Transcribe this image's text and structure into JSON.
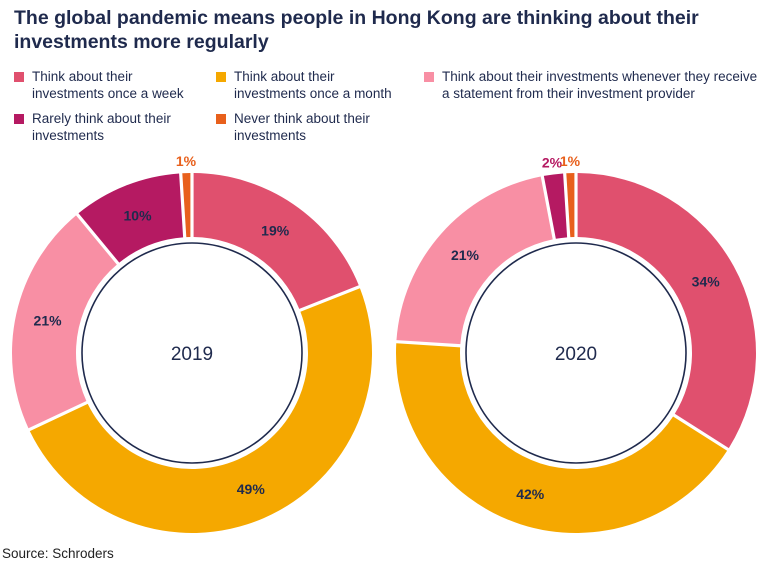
{
  "title": "The global pandemic means people in Hong Kong are thinking about their investments more regularly",
  "legend": [
    {
      "label": "Think about their investments once a week",
      "color": "#e0506e"
    },
    {
      "label": "Think about their investments once a month",
      "color": "#f5a800"
    },
    {
      "label": "Think about their investments whenever they receive a statement from their investment provider",
      "color": "#f88fa4"
    },
    {
      "label": "Rarely think about their investments",
      "color": "#b51a62"
    },
    {
      "label": "Never think about their investments",
      "color": "#e8601c"
    }
  ],
  "source": "Source: Schroders",
  "chart_data": [
    {
      "type": "pie",
      "center_label": "2019",
      "categories": [
        "Think about their investments once a week",
        "Think about their investments once a month",
        "Think about their investments whenever they receive a statement from their investment provider",
        "Rarely think about their investments",
        "Never think about their investments"
      ],
      "values": [
        19,
        49,
        21,
        10,
        1
      ],
      "labels": [
        "19%",
        "49%",
        "21%",
        "10%",
        "1%"
      ]
    },
    {
      "type": "pie",
      "center_label": "2020",
      "categories": [
        "Think about their investments once a week",
        "Think about their investments once a month",
        "Think about their investments whenever they receive a statement from their investment provider",
        "Rarely think about their investments",
        "Never think about their investments"
      ],
      "values": [
        34,
        42,
        21,
        2,
        1
      ],
      "labels": [
        "34%",
        "42%",
        "21%",
        "2%",
        "1%"
      ]
    }
  ]
}
